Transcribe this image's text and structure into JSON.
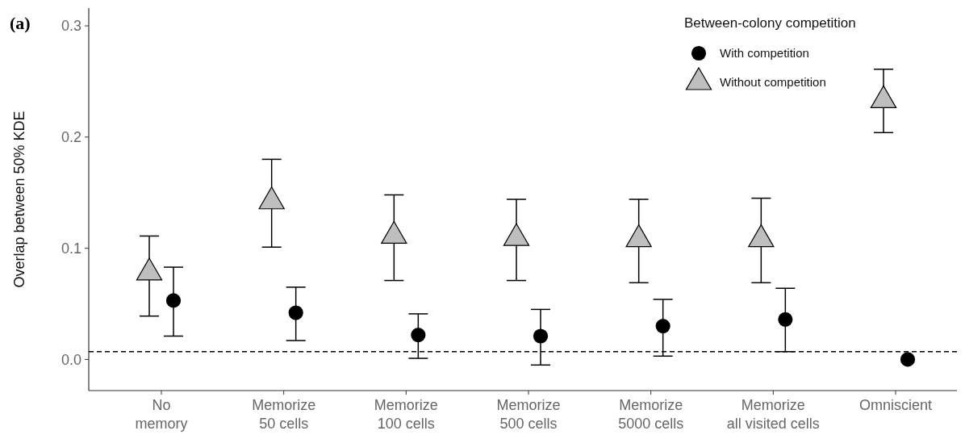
{
  "chart_data": {
    "type": "scatter",
    "ylabel": "Overlap between 50% KDE",
    "legend_title": "Between-colony competition",
    "annotations": [
      "(a)"
    ],
    "categories": [
      "No\nmemory",
      "Memorize\n50 cells",
      "Memorize\n100 cells",
      "Memorize\n500 cells",
      "Memorize\n5000 cells",
      "Memorize\nall visited cells",
      "Omniscient"
    ],
    "series": [
      {
        "name": "With competition",
        "color": "#000000",
        "marker": "circle",
        "values": [
          0.053,
          0.042,
          0.022,
          0.021,
          0.03,
          0.036,
          0.0
        ],
        "errors": [
          [
            0.021,
            0.083
          ],
          [
            0.017,
            0.065
          ],
          [
            0.001,
            0.041
          ],
          [
            -0.005,
            0.045
          ],
          [
            0.003,
            0.054
          ],
          [
            0.007,
            0.064
          ],
          null
        ]
      },
      {
        "name": "Without competition",
        "color": "#bebebe",
        "marker": "triangle",
        "values": [
          0.078,
          0.142,
          0.111,
          0.109,
          0.108,
          0.108,
          0.233
        ],
        "errors": [
          [
            0.039,
            0.111
          ],
          [
            0.101,
            0.18
          ],
          [
            0.071,
            0.148
          ],
          [
            0.071,
            0.144
          ],
          [
            0.069,
            0.144
          ],
          [
            0.069,
            0.145
          ],
          [
            0.204,
            0.261
          ]
        ]
      }
    ],
    "ylim": [
      -0.028,
      0.316
    ],
    "yticks": [
      {
        "value": 0,
        "label": "0.0"
      },
      0.1,
      0.2,
      0.3
    ],
    "ref_lines": [
      {
        "axis": "y",
        "value": 0.007,
        "line_style": "dashed",
        "color": "#000000"
      }
    ],
    "grid": false,
    "legend": "top right"
  }
}
